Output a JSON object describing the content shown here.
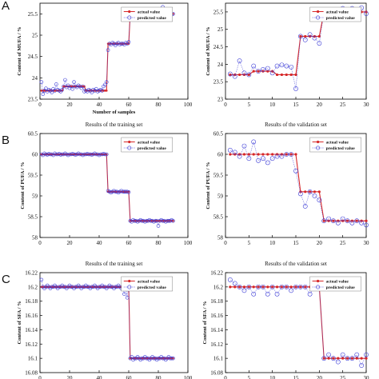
{
  "panel_letters": [
    "A",
    "B",
    "C"
  ],
  "legend": {
    "actual": "actual value",
    "predicted": "predicted value"
  },
  "colors": {
    "actual": "#d62728",
    "predicted": "#3b3bd6",
    "axes": "#000000"
  },
  "chart_data": [
    {
      "type": "line",
      "panel": "A",
      "title": "",
      "xlabel": "Number of samples",
      "ylabel": "Content of MUFA / %",
      "xlim": [
        0,
        100
      ],
      "ylim": [
        23.5,
        25.75
      ],
      "xticks": [
        0,
        20,
        40,
        60,
        80,
        100
      ],
      "yticks": [
        23.5,
        24,
        24.5,
        25,
        25.5
      ],
      "ytick_labels": [
        "23.5",
        "24",
        "24.5",
        "25",
        "25.5"
      ],
      "segments": [
        {
          "x0": 1,
          "x1": 15,
          "y": 23.7
        },
        {
          "x0": 16,
          "x1": 30,
          "y": 23.8
        },
        {
          "x0": 31,
          "x1": 45,
          "y": 23.7
        },
        {
          "x0": 46,
          "x1": 60,
          "y": 24.8
        },
        {
          "x0": 61,
          "x1": 90,
          "y": 25.5
        }
      ],
      "predicted": {
        "x": [
          1,
          2,
          3,
          4,
          5,
          6,
          7,
          8,
          9,
          10,
          11,
          12,
          13,
          14,
          15,
          16,
          17,
          18,
          19,
          20,
          21,
          22,
          23,
          24,
          25,
          26,
          27,
          28,
          29,
          30,
          31,
          32,
          33,
          34,
          35,
          36,
          37,
          38,
          39,
          40,
          41,
          42,
          43,
          44,
          45,
          46,
          47,
          48,
          49,
          50,
          51,
          52,
          53,
          54,
          55,
          56,
          57,
          58,
          59,
          60,
          61,
          62,
          63,
          64,
          65,
          66,
          67,
          68,
          69,
          70,
          71,
          72,
          73,
          74,
          75,
          76,
          77,
          78,
          79,
          80,
          81,
          82,
          83,
          84,
          85,
          86,
          87,
          88,
          89,
          90
        ],
        "y": [
          23.9,
          23.62,
          23.7,
          23.75,
          23.68,
          23.72,
          23.7,
          23.66,
          23.74,
          23.7,
          23.85,
          23.72,
          23.7,
          23.68,
          23.72,
          23.8,
          23.95,
          23.78,
          23.82,
          23.76,
          23.8,
          23.74,
          23.9,
          23.8,
          23.78,
          23.82,
          23.8,
          23.76,
          23.8,
          23.68,
          23.7,
          23.68,
          23.72,
          23.7,
          23.66,
          23.72,
          23.7,
          23.74,
          23.68,
          23.7,
          23.72,
          23.7,
          23.8,
          23.84,
          23.9,
          24.65,
          24.8,
          24.78,
          24.82,
          24.8,
          24.76,
          24.8,
          24.82,
          24.78,
          24.8,
          24.8,
          24.78,
          24.82,
          24.8,
          24.84,
          25.5,
          25.48,
          25.52,
          25.5,
          25.46,
          25.5,
          25.54,
          25.5,
          25.48,
          25.5,
          25.52,
          25.5,
          25.5,
          25.48,
          25.52,
          25.5,
          25.56,
          25.5,
          25.48,
          25.5,
          25.52,
          25.5,
          25.66,
          25.5,
          25.48,
          25.5,
          25.52,
          25.5,
          25.48,
          25.5
        ]
      }
    },
    {
      "type": "line",
      "panel": "A2",
      "title": "",
      "xlabel": "",
      "ylabel": "Content of MUFA / %",
      "xlim": [
        0,
        30
      ],
      "ylim": [
        23,
        25.75
      ],
      "xticks": [
        0,
        5,
        10,
        15,
        20,
        25,
        30
      ],
      "yticks": [
        23,
        23.5,
        24,
        24.5,
        25,
        25.5
      ],
      "ytick_labels": [
        "23",
        "23.5",
        "24",
        "24.5",
        "25",
        "25.5"
      ],
      "segments": [
        {
          "x0": 1,
          "x1": 5,
          "y": 23.7
        },
        {
          "x0": 6,
          "x1": 10,
          "y": 23.8
        },
        {
          "x0": 11,
          "x1": 15,
          "y": 23.7
        },
        {
          "x0": 16,
          "x1": 20,
          "y": 24.8
        },
        {
          "x0": 21,
          "x1": 30,
          "y": 25.5
        }
      ],
      "predicted": {
        "x": [
          1,
          2,
          3,
          4,
          5,
          6,
          7,
          8,
          9,
          10,
          11,
          12,
          13,
          14,
          15,
          16,
          17,
          18,
          19,
          20,
          21,
          22,
          23,
          24,
          25,
          26,
          27,
          28,
          29,
          30
        ],
        "y": [
          23.72,
          23.65,
          24.1,
          23.75,
          23.7,
          23.95,
          23.8,
          23.85,
          23.88,
          23.75,
          23.95,
          23.98,
          23.95,
          23.92,
          23.3,
          24.8,
          24.7,
          24.85,
          24.75,
          24.6,
          25.5,
          25.5,
          25.45,
          25.55,
          25.6,
          25.5,
          25.6,
          25.5,
          25.62,
          25.45
        ]
      }
    },
    {
      "type": "line",
      "panel": "B",
      "title": "Results of the training set",
      "xlabel": "",
      "ylabel": "Content of PUFA / %",
      "xlim": [
        0,
        100
      ],
      "ylim": [
        58,
        60.5
      ],
      "xticks": [
        0,
        20,
        40,
        60,
        80,
        100
      ],
      "yticks": [
        58,
        58.5,
        59,
        59.5,
        60,
        60.5
      ],
      "ytick_labels": [
        "58",
        "58.5",
        "59",
        "59.5",
        "60",
        "60.5"
      ],
      "segments": [
        {
          "x0": 1,
          "x1": 45,
          "y": 60.0
        },
        {
          "x0": 46,
          "x1": 60,
          "y": 59.1
        },
        {
          "x0": 61,
          "x1": 90,
          "y": 58.4
        }
      ],
      "predicted": {
        "x": [
          1,
          2,
          3,
          4,
          5,
          6,
          7,
          8,
          9,
          10,
          11,
          12,
          13,
          14,
          15,
          16,
          17,
          18,
          19,
          20,
          21,
          22,
          23,
          24,
          25,
          26,
          27,
          28,
          29,
          30,
          31,
          32,
          33,
          34,
          35,
          36,
          37,
          38,
          39,
          40,
          41,
          42,
          43,
          44,
          45,
          46,
          47,
          48,
          49,
          50,
          51,
          52,
          53,
          54,
          55,
          56,
          57,
          58,
          59,
          60,
          61,
          62,
          63,
          64,
          65,
          66,
          67,
          68,
          69,
          70,
          71,
          72,
          73,
          74,
          75,
          76,
          77,
          78,
          79,
          80,
          81,
          82,
          83,
          84,
          85,
          86,
          87,
          88,
          89,
          90
        ],
        "y": [
          60.0,
          59.98,
          60.02,
          60.0,
          59.99,
          60.01,
          60.0,
          60.0,
          59.98,
          60.02,
          60.0,
          60.0,
          60.01,
          59.99,
          60.0,
          60.0,
          60.02,
          60.0,
          59.98,
          60.0,
          60.0,
          60.01,
          60.0,
          59.99,
          60.0,
          60.02,
          60.0,
          60.0,
          59.98,
          60.0,
          60.0,
          60.01,
          60.0,
          60.0,
          59.99,
          60.0,
          60.02,
          60.0,
          60.0,
          59.98,
          60.0,
          60.0,
          60.01,
          60.0,
          60.0,
          59.12,
          59.1,
          59.08,
          59.1,
          59.12,
          59.1,
          59.1,
          59.08,
          59.1,
          59.12,
          59.1,
          59.1,
          59.1,
          59.1,
          59.09,
          58.4,
          58.38,
          58.42,
          58.4,
          58.4,
          58.38,
          58.4,
          58.42,
          58.4,
          58.4,
          58.38,
          58.4,
          58.4,
          58.42,
          58.4,
          58.4,
          58.38,
          58.4,
          58.4,
          58.28,
          58.4,
          58.42,
          58.4,
          58.4,
          58.38,
          58.4,
          58.4,
          58.4,
          58.42,
          58.4
        ]
      }
    },
    {
      "type": "line",
      "panel": "B2",
      "title": "Results of the validation set",
      "xlabel": "",
      "ylabel": "Content of PUFA / %",
      "xlim": [
        0,
        30
      ],
      "ylim": [
        58,
        60.5
      ],
      "xticks": [
        0,
        5,
        10,
        15,
        20,
        25,
        30
      ],
      "yticks": [
        58,
        58.5,
        59,
        59.5,
        60,
        60.5
      ],
      "ytick_labels": [
        "58",
        "58.5",
        "59",
        "59.5",
        "60",
        "60.5"
      ],
      "segments": [
        {
          "x0": 1,
          "x1": 15,
          "y": 60.0
        },
        {
          "x0": 16,
          "x1": 20,
          "y": 59.1
        },
        {
          "x0": 21,
          "x1": 30,
          "y": 58.4
        }
      ],
      "predicted": {
        "x": [
          1,
          2,
          3,
          4,
          5,
          6,
          7,
          8,
          9,
          10,
          11,
          12,
          13,
          14,
          15,
          16,
          17,
          18,
          19,
          20,
          21,
          22,
          23,
          24,
          25,
          26,
          27,
          28,
          29,
          30
        ],
        "y": [
          60.1,
          60.05,
          59.95,
          60.2,
          59.9,
          60.3,
          59.85,
          59.9,
          59.8,
          59.9,
          59.95,
          59.95,
          60.0,
          60.0,
          59.6,
          59.05,
          58.75,
          59.1,
          59.0,
          58.9,
          58.4,
          58.45,
          58.4,
          58.35,
          58.45,
          58.4,
          58.35,
          58.4,
          58.35,
          58.3
        ]
      }
    },
    {
      "type": "line",
      "panel": "C",
      "title": "Results of the training set",
      "xlabel": "",
      "ylabel": "Content of SFA / %",
      "xlim": [
        0,
        100
      ],
      "ylim": [
        16.08,
        16.22
      ],
      "xticks": [
        0,
        20,
        40,
        60,
        80,
        100
      ],
      "yticks": [
        16.08,
        16.1,
        16.12,
        16.14,
        16.16,
        16.18,
        16.2,
        16.22
      ],
      "ytick_labels": [
        "16.08",
        "16.1",
        "16.12",
        "16.14",
        "16.16",
        "16.18",
        "16.2",
        "16.22"
      ],
      "segments": [
        {
          "x0": 1,
          "x1": 60,
          "y": 16.2
        },
        {
          "x0": 61,
          "x1": 90,
          "y": 16.1
        }
      ],
      "predicted": {
        "x": [
          1,
          2,
          3,
          4,
          5,
          6,
          7,
          8,
          9,
          10,
          11,
          12,
          13,
          14,
          15,
          16,
          17,
          18,
          19,
          20,
          21,
          22,
          23,
          24,
          25,
          26,
          27,
          28,
          29,
          30,
          31,
          32,
          33,
          34,
          35,
          36,
          37,
          38,
          39,
          40,
          41,
          42,
          43,
          44,
          45,
          46,
          47,
          48,
          49,
          50,
          51,
          52,
          53,
          54,
          55,
          56,
          57,
          58,
          59,
          60,
          61,
          62,
          63,
          64,
          65,
          66,
          67,
          68,
          69,
          70,
          71,
          72,
          73,
          74,
          75,
          76,
          77,
          78,
          79,
          80,
          81,
          82,
          83,
          84,
          85,
          86,
          87,
          88,
          89,
          90
        ],
        "y": [
          16.21,
          16.2,
          16.198,
          16.2,
          16.202,
          16.2,
          16.198,
          16.2,
          16.2,
          16.202,
          16.2,
          16.198,
          16.2,
          16.2,
          16.202,
          16.2,
          16.2,
          16.198,
          16.2,
          16.202,
          16.2,
          16.2,
          16.198,
          16.2,
          16.2,
          16.202,
          16.2,
          16.198,
          16.2,
          16.2,
          16.202,
          16.2,
          16.2,
          16.198,
          16.2,
          16.2,
          16.202,
          16.2,
          16.198,
          16.2,
          16.2,
          16.202,
          16.2,
          16.2,
          16.198,
          16.2,
          16.202,
          16.2,
          16.2,
          16.198,
          16.2,
          16.2,
          16.202,
          16.2,
          16.198,
          16.2,
          16.19,
          16.2,
          16.185,
          16.202,
          16.1,
          16.102,
          16.098,
          16.1,
          16.1,
          16.102,
          16.1,
          16.098,
          16.1,
          16.1,
          16.102,
          16.1,
          16.1,
          16.098,
          16.1,
          16.102,
          16.1,
          16.1,
          16.098,
          16.1,
          16.1,
          16.102,
          16.1,
          16.1,
          16.098,
          16.1,
          16.102,
          16.1,
          16.1,
          16.1
        ]
      }
    },
    {
      "type": "line",
      "panel": "C2",
      "title": "Results of the validation set",
      "xlabel": "",
      "ylabel": "Content of SFA / %",
      "xlim": [
        0,
        30
      ],
      "ylim": [
        16.08,
        16.22
      ],
      "xticks": [
        0,
        5,
        10,
        15,
        20,
        25,
        30
      ],
      "yticks": [
        16.08,
        16.1,
        16.12,
        16.14,
        16.16,
        16.18,
        16.2,
        16.22
      ],
      "ytick_labels": [
        "16.08",
        "16.1",
        "16.12",
        "16.14",
        "16.16",
        "16.18",
        "16.2",
        "16.22"
      ],
      "segments": [
        {
          "x0": 1,
          "x1": 20,
          "y": 16.2
        },
        {
          "x0": 21,
          "x1": 30,
          "y": 16.1
        }
      ],
      "predicted": {
        "x": [
          1,
          2,
          3,
          4,
          5,
          6,
          7,
          8,
          9,
          10,
          11,
          12,
          13,
          14,
          15,
          16,
          17,
          18,
          19,
          20,
          21,
          22,
          23,
          24,
          25,
          26,
          27,
          28,
          29,
          30
        ],
        "y": [
          16.21,
          16.205,
          16.2,
          16.195,
          16.2,
          16.19,
          16.2,
          16.2,
          16.19,
          16.2,
          16.19,
          16.2,
          16.2,
          16.195,
          16.2,
          16.2,
          16.2,
          16.19,
          16.2,
          16.2,
          16.1,
          16.105,
          16.1,
          16.095,
          16.105,
          16.1,
          16.1,
          16.105,
          16.09,
          16.105
        ]
      }
    }
  ]
}
